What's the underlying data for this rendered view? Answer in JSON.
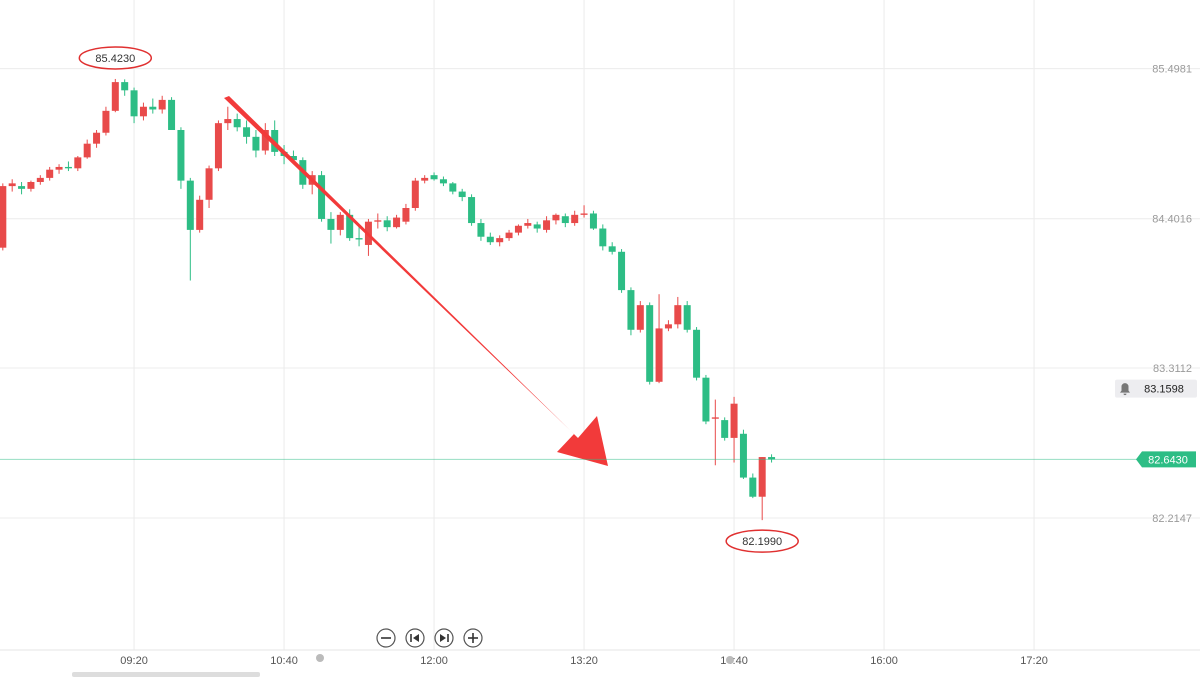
{
  "chart_data": {
    "type": "candlestick",
    "up_color": "#e84a4a",
    "down_color": "#2dbd85",
    "grid": true,
    "xlim": [
      488.5,
      1128.5
    ],
    "xticks": [
      {
        "value": 560,
        "label": "09:20"
      },
      {
        "value": 640,
        "label": "10:40"
      },
      {
        "value": 720,
        "label": "12:00"
      },
      {
        "value": 800,
        "label": "13:20"
      },
      {
        "value": 880,
        "label": "14:40"
      },
      {
        "value": 960,
        "label": "16:00"
      },
      {
        "value": 1040,
        "label": "17:20"
      }
    ],
    "ylim": [
      81.25,
      86.0
    ],
    "yticks": [
      82.2147,
      83.3112,
      84.4016,
      85.4981
    ],
    "x": [
      490,
      495,
      500,
      505,
      510,
      515,
      520,
      525,
      530,
      535,
      540,
      545,
      550,
      555,
      560,
      565,
      570,
      575,
      580,
      585,
      590,
      595,
      600,
      605,
      610,
      615,
      620,
      625,
      630,
      635,
      640,
      645,
      650,
      655,
      660,
      665,
      670,
      675,
      680,
      685,
      690,
      695,
      700,
      705,
      710,
      715,
      720,
      725,
      730,
      735,
      740,
      745,
      750,
      755,
      760,
      765,
      770,
      775,
      780,
      785,
      790,
      795,
      800,
      805,
      810,
      815,
      820,
      825,
      830,
      835,
      840,
      845,
      850,
      855,
      860,
      865,
      870,
      875,
      880,
      885,
      890,
      895,
      900
    ],
    "open": [
      84.19,
      84.64,
      84.64,
      84.62,
      84.67,
      84.7,
      84.76,
      84.78,
      84.77,
      84.85,
      84.95,
      85.03,
      85.19,
      85.4,
      85.34,
      85.15,
      85.22,
      85.2,
      85.27,
      85.05,
      84.68,
      84.32,
      84.54,
      84.77,
      85.1,
      85.13,
      85.07,
      85.0,
      84.9,
      85.05,
      84.89,
      84.86,
      84.83,
      84.65,
      84.72,
      84.4,
      84.32,
      84.43,
      84.26,
      84.21,
      84.38,
      84.39,
      84.34,
      84.38,
      84.48,
      84.68,
      84.72,
      84.69,
      84.66,
      84.6,
      84.56,
      84.37,
      84.27,
      84.23,
      84.26,
      84.3,
      84.35,
      84.36,
      84.32,
      84.39,
      84.42,
      84.37,
      84.43,
      84.44,
      84.33,
      84.2,
      84.16,
      83.88,
      83.59,
      83.77,
      83.21,
      83.6,
      83.63,
      83.77,
      83.59,
      83.24,
      82.94,
      82.93,
      82.8,
      82.83,
      82.51,
      82.37,
      82.66
    ],
    "high": [
      84.66,
      84.69,
      84.67,
      84.68,
      84.72,
      84.78,
      84.8,
      84.82,
      84.86,
      84.98,
      85.05,
      85.22,
      85.423,
      85.42,
      85.36,
      85.25,
      85.28,
      85.3,
      85.29,
      85.07,
      84.7,
      84.57,
      84.79,
      85.12,
      85.22,
      85.17,
      85.12,
      85.05,
      85.1,
      85.12,
      84.94,
      84.9,
      84.85,
      84.75,
      84.75,
      84.45,
      84.45,
      84.47,
      84.35,
      84.4,
      84.44,
      84.42,
      84.43,
      84.51,
      84.7,
      84.72,
      84.74,
      84.71,
      84.67,
      84.62,
      84.58,
      84.4,
      84.3,
      84.28,
      84.32,
      84.36,
      84.4,
      84.38,
      84.42,
      84.44,
      84.44,
      84.46,
      84.5,
      84.46,
      84.36,
      84.23,
      84.18,
      83.9,
      83.8,
      83.79,
      83.85,
      83.66,
      83.83,
      83.8,
      83.61,
      83.26,
      83.08,
      82.95,
      83.1,
      82.86,
      82.54,
      82.66,
      82.68
    ],
    "low": [
      84.17,
      84.6,
      84.58,
      84.6,
      84.65,
      84.68,
      84.73,
      84.75,
      84.75,
      84.84,
      84.92,
      85.01,
      85.18,
      85.3,
      85.1,
      85.12,
      85.17,
      85.17,
      85.08,
      84.62,
      83.95,
      84.3,
      84.48,
      84.75,
      85.05,
      85.04,
      84.95,
      84.85,
      84.87,
      84.86,
      84.8,
      84.8,
      84.62,
      84.58,
      84.38,
      84.22,
      84.28,
      84.24,
      84.2,
      84.13,
      84.33,
      84.31,
      84.33,
      84.36,
      84.46,
      84.66,
      84.68,
      84.64,
      84.58,
      84.53,
      84.35,
      84.24,
      84.21,
      84.2,
      84.24,
      84.28,
      84.33,
      84.3,
      84.3,
      84.36,
      84.34,
      84.35,
      84.41,
      84.32,
      84.17,
      84.14,
      83.86,
      83.55,
      83.57,
      83.19,
      83.2,
      83.58,
      83.6,
      83.57,
      83.22,
      82.9,
      82.6,
      82.78,
      82.62,
      82.5,
      82.36,
      82.199,
      82.62
    ],
    "close": [
      84.64,
      84.66,
      84.62,
      84.67,
      84.7,
      84.76,
      84.78,
      84.77,
      84.85,
      84.95,
      85.03,
      85.19,
      85.4,
      85.34,
      85.15,
      85.22,
      85.2,
      85.27,
      85.05,
      84.68,
      84.32,
      84.54,
      84.77,
      85.1,
      85.13,
      85.07,
      85.0,
      84.9,
      85.05,
      84.89,
      84.86,
      84.83,
      84.65,
      84.72,
      84.4,
      84.32,
      84.43,
      84.26,
      84.25,
      84.38,
      84.39,
      84.34,
      84.41,
      84.48,
      84.68,
      84.7,
      84.69,
      84.66,
      84.6,
      84.56,
      84.37,
      84.27,
      84.23,
      84.26,
      84.3,
      84.35,
      84.37,
      84.33,
      84.39,
      84.43,
      84.37,
      84.43,
      84.44,
      84.33,
      84.2,
      84.16,
      83.88,
      83.59,
      83.77,
      83.21,
      83.6,
      83.63,
      83.77,
      83.59,
      83.24,
      82.92,
      82.95,
      82.8,
      83.05,
      82.51,
      82.37,
      82.66,
      82.643
    ],
    "price_markers": {
      "high": {
        "value": 85.423,
        "label": "85.4230"
      },
      "low": {
        "value": 82.199,
        "label": "82.1990"
      },
      "last": {
        "value": 82.643,
        "label": "82.6430",
        "color": "#2dbd85"
      },
      "alert": {
        "value": 83.1598,
        "label": "83.1598"
      }
    }
  }
}
